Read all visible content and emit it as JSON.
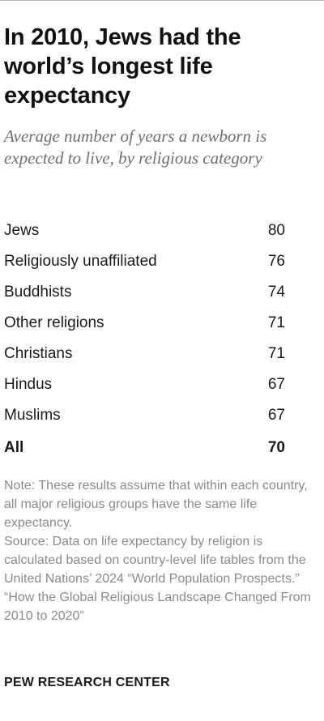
{
  "header": {
    "title": "In 2010, Jews had the world’s longest life expectancy",
    "subtitle": "Average number of years a newborn is expected to live, by religious category"
  },
  "chart_data": {
    "type": "table",
    "title": "In 2010, Jews had the world’s longest life expectancy",
    "subtitle": "Average number of years a newborn is expected to live, by religious category",
    "rows": [
      {
        "label": "Jews",
        "value": 80
      },
      {
        "label": "Religiously unaffiliated",
        "value": 76
      },
      {
        "label": "Buddhists",
        "value": 74
      },
      {
        "label": "Other religions",
        "value": 71
      },
      {
        "label": "Christians",
        "value": 71
      },
      {
        "label": "Hindus",
        "value": 67
      },
      {
        "label": "Muslims",
        "value": 67
      }
    ],
    "total": {
      "label": "All",
      "value": 70
    }
  },
  "footer": {
    "note": "Note: These results assume that within each country, all major religious groups have the same life expectancy.",
    "source": "Source: Data on life expectancy by religion is calculated based on country-level life tables from the United Nations’ 2024 “World Population Prospects.”",
    "report": "“How the Global Religious Landscape Changed From 2010 to 2020”",
    "brand": "PEW RESEARCH CENTER"
  }
}
